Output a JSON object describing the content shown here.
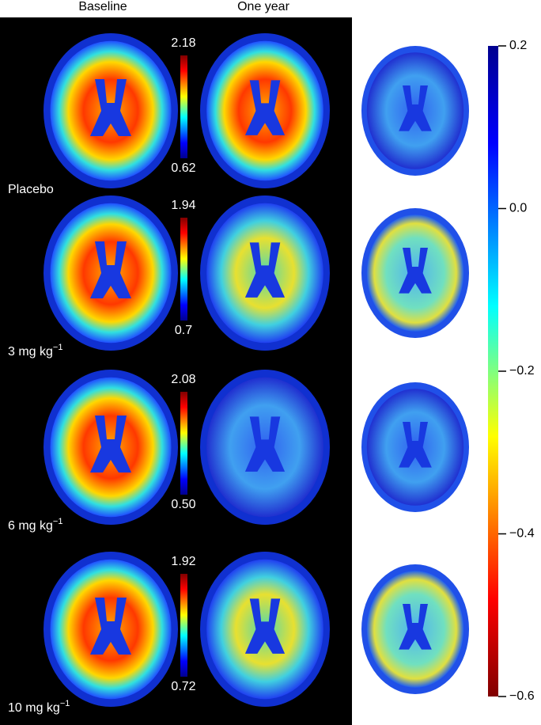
{
  "columns": [
    "Baseline",
    "One year"
  ],
  "rows": [
    {
      "label": "Placebo",
      "scale_max": "2.18",
      "scale_min": "0.62"
    },
    {
      "label": "3 mg kg",
      "label_sup": "−1",
      "scale_max": "1.94",
      "scale_min": "0.7"
    },
    {
      "label": "6 mg kg",
      "label_sup": "−1",
      "scale_max": "2.08",
      "scale_min": "0.50"
    },
    {
      "label": "10 mg kg",
      "label_sup": "−1",
      "scale_max": "1.92",
      "scale_min": "0.72"
    }
  ],
  "difference_scale": {
    "range": [
      -0.6,
      0.2
    ],
    "ticks": [
      0.2,
      {
        "value": 0,
        "label": "0.0"
      },
      {
        "value": -0.2,
        "label": "−0.2"
      },
      {
        "value": -0.4,
        "label": "−0.4"
      },
      {
        "value": -0.6,
        "label": "−0.6"
      }
    ]
  }
}
